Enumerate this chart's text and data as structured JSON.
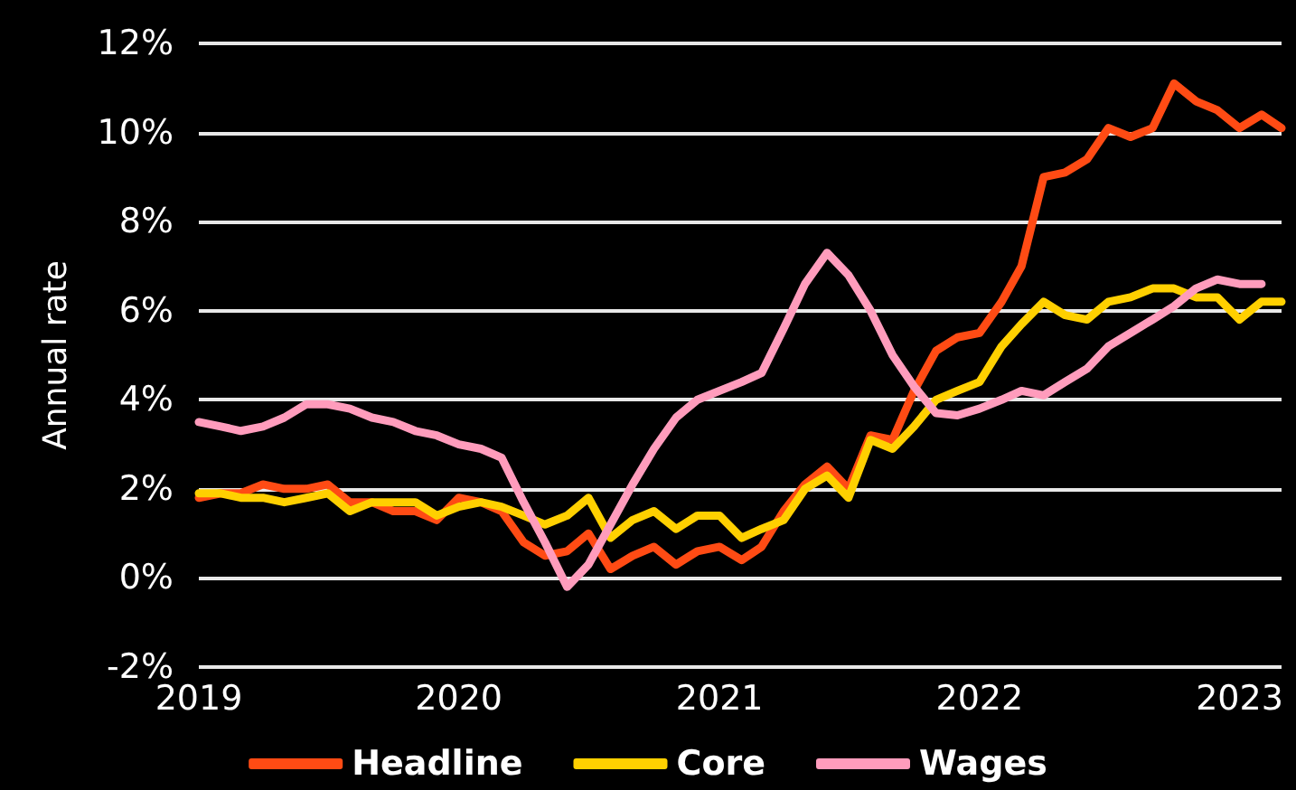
{
  "chart_data": {
    "type": "line",
    "ylabel": "Annual rate",
    "xlim": [
      "2019-01",
      "2023-03"
    ],
    "xticks": [
      "2019",
      "2020",
      "2021",
      "2022",
      "2023"
    ],
    "ylim": [
      -2,
      12
    ],
    "yticks": [
      {
        "value": -2,
        "label": "-2%"
      },
      {
        "value": 0,
        "label": "0%"
      },
      {
        "value": 2,
        "label": "2%"
      },
      {
        "value": 4,
        "label": "4%"
      },
      {
        "value": 6,
        "label": "6%"
      },
      {
        "value": 8,
        "label": "8%"
      },
      {
        "value": 10,
        "label": "10%"
      },
      {
        "value": 12,
        "label": "12%"
      }
    ],
    "grid": "y",
    "legend": "bottom",
    "marker": "none",
    "line_style": "solid",
    "x": [
      "2019-01",
      "2019-02",
      "2019-03",
      "2019-04",
      "2019-05",
      "2019-06",
      "2019-07",
      "2019-08",
      "2019-09",
      "2019-10",
      "2019-11",
      "2019-12",
      "2020-01",
      "2020-02",
      "2020-03",
      "2020-04",
      "2020-05",
      "2020-06",
      "2020-07",
      "2020-08",
      "2020-09",
      "2020-10",
      "2020-11",
      "2020-12",
      "2021-01",
      "2021-02",
      "2021-03",
      "2021-04",
      "2021-05",
      "2021-06",
      "2021-07",
      "2021-08",
      "2021-09",
      "2021-10",
      "2021-11",
      "2021-12",
      "2022-01",
      "2022-02",
      "2022-03",
      "2022-04",
      "2022-05",
      "2022-06",
      "2022-07",
      "2022-08",
      "2022-09",
      "2022-10",
      "2022-11",
      "2022-12",
      "2023-01",
      "2023-02",
      "2023-03"
    ],
    "series": [
      {
        "name": "Headline",
        "color": "#ff4b14",
        "values": [
          1.8,
          1.9,
          1.9,
          2.1,
          2.0,
          2.0,
          2.1,
          1.7,
          1.7,
          1.5,
          1.5,
          1.3,
          1.8,
          1.7,
          1.5,
          0.8,
          0.5,
          0.6,
          1.0,
          0.2,
          0.5,
          0.7,
          0.3,
          0.6,
          0.7,
          0.4,
          0.7,
          1.5,
          2.1,
          2.5,
          2.0,
          3.2,
          3.1,
          4.2,
          5.1,
          5.4,
          5.5,
          6.2,
          7.0,
          9.0,
          9.1,
          9.4,
          10.1,
          9.9,
          10.1,
          11.1,
          10.7,
          10.5,
          10.1,
          10.4,
          10.1
        ]
      },
      {
        "name": "Core",
        "color": "#ffd000",
        "values": [
          1.9,
          1.9,
          1.8,
          1.8,
          1.7,
          1.8,
          1.9,
          1.5,
          1.7,
          1.7,
          1.7,
          1.4,
          1.6,
          1.7,
          1.6,
          1.4,
          1.2,
          1.4,
          1.8,
          0.9,
          1.3,
          1.5,
          1.1,
          1.4,
          1.4,
          0.9,
          1.1,
          1.3,
          2.0,
          2.3,
          1.8,
          3.1,
          2.9,
          3.4,
          4.0,
          4.2,
          4.4,
          5.2,
          5.7,
          6.2,
          5.9,
          5.8,
          6.2,
          6.3,
          6.5,
          6.5,
          6.3,
          6.3,
          5.8,
          6.2,
          6.2
        ]
      },
      {
        "name": "Wages",
        "color": "#ff9cbc",
        "values": [
          3.5,
          3.4,
          3.3,
          3.4,
          3.6,
          3.9,
          3.9,
          3.8,
          3.6,
          3.5,
          3.3,
          3.2,
          3.0,
          2.9,
          2.7,
          1.7,
          0.8,
          -0.2,
          0.3,
          1.2,
          2.1,
          2.9,
          3.6,
          4.0,
          4.2,
          4.4,
          4.6,
          5.6,
          6.6,
          7.3,
          6.8,
          6.0,
          5.0,
          4.3,
          3.7,
          3.65,
          3.8,
          4.0,
          4.2,
          4.1,
          4.4,
          4.7,
          5.2,
          5.5,
          5.8,
          6.1,
          6.5,
          6.7,
          6.6,
          6.6,
          null
        ]
      }
    ]
  }
}
